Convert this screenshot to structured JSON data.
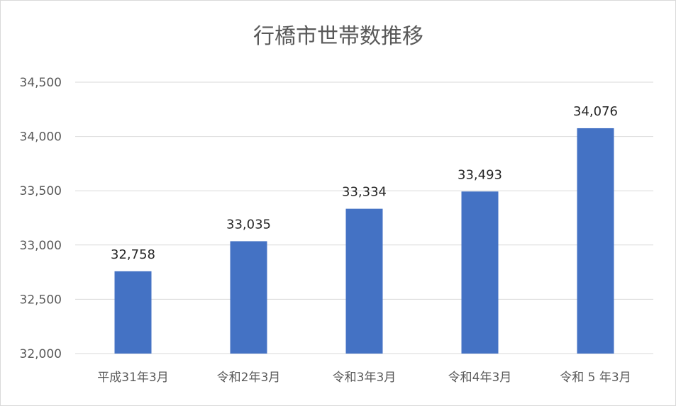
{
  "chart_data": {
    "type": "bar",
    "title": "行橋市世帯数推移",
    "xlabel": "",
    "ylabel": "",
    "categories": [
      "平成31年3月",
      "令和2年3月",
      "令和3年3月",
      "令和4年3月",
      "令和 5 年3月"
    ],
    "values": [
      32758,
      33035,
      33334,
      33493,
      34076
    ],
    "value_labels": [
      "32,758",
      "33,035",
      "33,334",
      "33,493",
      "34,076"
    ],
    "ylim": [
      32000,
      34500
    ],
    "yticks": [
      32000,
      32500,
      33000,
      33500,
      34000,
      34500
    ],
    "ytick_labels": [
      "32,000",
      "32,500",
      "33,000",
      "33,500",
      "34,000",
      "34,500"
    ],
    "grid": true,
    "legend": "none",
    "bar_color": "#4472c4"
  }
}
